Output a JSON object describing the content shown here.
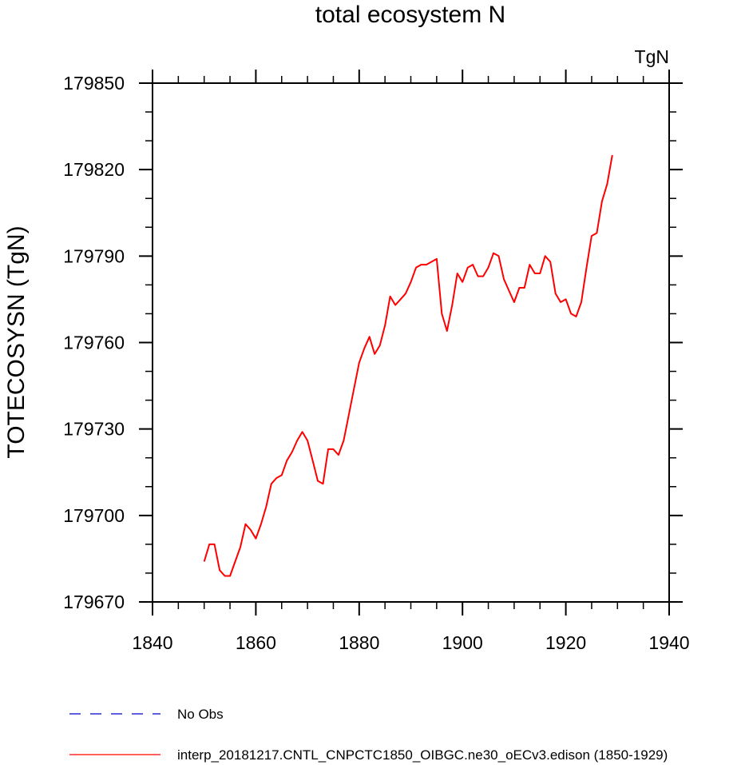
{
  "chart_data": {
    "type": "line",
    "title": "total ecosystem N",
    "units_label": "TgN",
    "xlabel": "",
    "ylabel": "TOTECOSYSN  (TgN)",
    "xlim": [
      1840,
      1940
    ],
    "ylim": [
      179670,
      179850
    ],
    "x_ticks": [
      1840,
      1860,
      1880,
      1900,
      1920,
      1940
    ],
    "y_ticks": [
      179670,
      179700,
      179730,
      179760,
      179790,
      179820,
      179850
    ],
    "grid": false,
    "legend_position": "bottom",
    "series": [
      {
        "name": "No Obs",
        "color": "#0000cc",
        "dash": "dashed",
        "x": [],
        "values": []
      },
      {
        "name": "interp_20181217.CNTL_CNPCTC1850_OIBGC.ne30_oECv3.edison (1850-1929)",
        "color": "#ff0000",
        "dash": "solid",
        "x": [
          1850,
          1851,
          1852,
          1853,
          1854,
          1855,
          1856,
          1857,
          1858,
          1859,
          1860,
          1861,
          1862,
          1863,
          1864,
          1865,
          1866,
          1867,
          1868,
          1869,
          1870,
          1871,
          1872,
          1873,
          1874,
          1875,
          1876,
          1877,
          1878,
          1879,
          1880,
          1881,
          1882,
          1883,
          1884,
          1885,
          1886,
          1887,
          1888,
          1889,
          1890,
          1891,
          1892,
          1893,
          1894,
          1895,
          1896,
          1897,
          1898,
          1899,
          1900,
          1901,
          1902,
          1903,
          1904,
          1905,
          1906,
          1907,
          1908,
          1909,
          1910,
          1911,
          1912,
          1913,
          1914,
          1915,
          1916,
          1917,
          1918,
          1919,
          1920,
          1921,
          1922,
          1923,
          1924,
          1925,
          1926,
          1927,
          1928,
          1929
        ],
        "values": [
          179684,
          179690,
          179690,
          179681,
          179679,
          179679,
          179684,
          179689,
          179697,
          179695,
          179692,
          179697,
          179703,
          179711,
          179713,
          179714,
          179719,
          179722,
          179726,
          179729,
          179726,
          179719,
          179712,
          179711,
          179723,
          179723,
          179721,
          179726,
          179735,
          179744,
          179753,
          179758,
          179762,
          179756,
          179759,
          179766,
          179776,
          179773,
          179775,
          179777,
          179781,
          179786,
          179787,
          179787,
          179788,
          179789,
          179770,
          179764,
          179773,
          179784,
          179781,
          179786,
          179787,
          179783,
          179783,
          179786,
          179791,
          179790,
          179782,
          179778,
          179774,
          179779,
          179779,
          179787,
          179784,
          179784,
          179790,
          179788,
          179777,
          179774,
          179775,
          179770,
          179769,
          179774,
          179786,
          179797,
          179798,
          179809,
          179815,
          179825
        ]
      }
    ]
  }
}
